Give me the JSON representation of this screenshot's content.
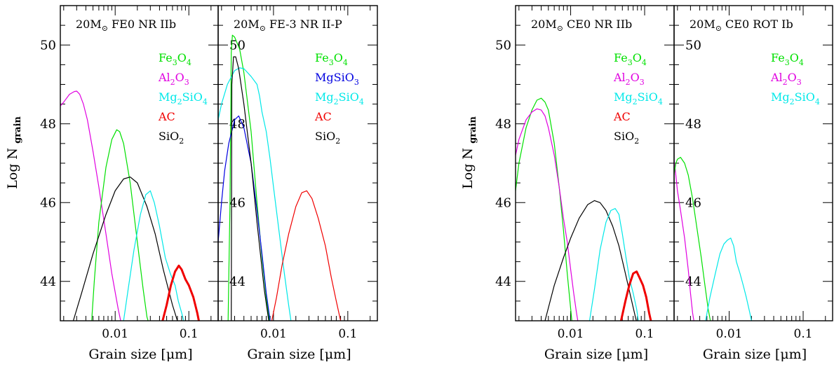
{
  "colors": {
    "Fe3O4": "#00e000",
    "Al2O3": "#e000e0",
    "Mg2SiO4": "#00e8e8",
    "MgSiO3": "#0000e0",
    "AC": "#f00000",
    "SiO2": "#000000"
  },
  "chart_data": [
    {
      "type": "line",
      "title": "20M⊙ FE0 NR IIb",
      "xlabel": "Grain size [μm]",
      "ylabel": "Log N_grain",
      "xscale": "log",
      "xlim": [
        0.0018,
        0.25
      ],
      "ylim": [
        43,
        51
      ],
      "xticks": [
        0.01,
        0.1
      ],
      "xtick_labels": [
        "0.01",
        "0.1"
      ],
      "yticks": [
        44,
        46,
        48,
        50
      ],
      "ytick_labels": [
        "44",
        "46",
        "48",
        "50"
      ],
      "legend": [
        {
          "label": "Fe3O4",
          "base": "Fe",
          "sub1": "3",
          "mid": "O",
          "sub2": "4",
          "color": "Fe3O4"
        },
        {
          "label": "Al2O3",
          "base": "Al",
          "sub1": "2",
          "mid": "O",
          "sub2": "3",
          "color": "Al2O3"
        },
        {
          "label": "Mg2SiO4",
          "base": "Mg",
          "sub1": "2",
          "mid": "SiO",
          "sub2": "4",
          "color": "Mg2SiO4"
        },
        {
          "label": "AC",
          "base": "AC",
          "sub1": "",
          "mid": "",
          "sub2": "",
          "color": "AC"
        },
        {
          "label": "SiO2",
          "base": "SiO",
          "sub1": "2",
          "mid": "",
          "sub2": "",
          "color": "SiO2"
        }
      ],
      "series": [
        {
          "species": "Al2O3",
          "color": "Al2O3",
          "x": [
            0.0018,
            0.002,
            0.0024,
            0.0028,
            0.003,
            0.0033,
            0.0037,
            0.0042,
            0.005,
            0.006,
            0.0075,
            0.009,
            0.011,
            0.0125
          ],
          "y": [
            48.45,
            48.55,
            48.75,
            48.82,
            48.83,
            48.75,
            48.5,
            48.1,
            47.3,
            46.4,
            45.2,
            44.2,
            43.3,
            42.8
          ]
        },
        {
          "species": "Fe3O4",
          "color": "Fe3O4",
          "x": [
            0.0048,
            0.0052,
            0.006,
            0.0075,
            0.009,
            0.0105,
            0.0115,
            0.013,
            0.016,
            0.02,
            0.024,
            0.027,
            0.03
          ],
          "y": [
            43.0,
            44.0,
            45.5,
            46.9,
            47.6,
            47.85,
            47.8,
            47.5,
            46.5,
            45.0,
            43.8,
            43.1,
            42.8
          ]
        },
        {
          "species": "SiO2",
          "color": "SiO2",
          "x": [
            0.0027,
            0.0035,
            0.005,
            0.0075,
            0.01,
            0.013,
            0.016,
            0.02,
            0.027,
            0.035,
            0.045,
            0.06,
            0.07
          ],
          "y": [
            43.0,
            43.7,
            44.7,
            45.7,
            46.3,
            46.6,
            46.65,
            46.5,
            45.9,
            45.2,
            44.3,
            43.4,
            43.0
          ]
        },
        {
          "species": "Mg2SiO4",
          "color": "Mg2SiO4",
          "x": [
            0.013,
            0.015,
            0.018,
            0.022,
            0.026,
            0.03,
            0.034,
            0.04,
            0.048,
            0.056,
            0.065,
            0.072,
            0.08,
            0.088
          ],
          "y": [
            43.0,
            43.8,
            44.8,
            45.7,
            46.2,
            46.3,
            46.0,
            45.4,
            44.6,
            44.2,
            43.9,
            43.5,
            43.2,
            42.9
          ]
        },
        {
          "species": "AC",
          "color": "AC",
          "x": [
            0.044,
            0.05,
            0.057,
            0.065,
            0.073,
            0.08,
            0.09,
            0.1,
            0.115,
            0.13,
            0.14
          ],
          "y": [
            43.0,
            43.4,
            43.9,
            44.25,
            44.4,
            44.3,
            44.05,
            43.9,
            43.6,
            43.2,
            42.9
          ]
        }
      ]
    },
    {
      "type": "line",
      "title": "20M⊙ FE-3 NR II-P",
      "xlabel": "Grain size [μm]",
      "ylabel": "",
      "xscale": "log",
      "xlim": [
        0.0018,
        0.25
      ],
      "ylim": [
        43,
        51
      ],
      "xticks": [
        0.01,
        0.1
      ],
      "xtick_labels": [
        "0.01",
        "0.1"
      ],
      "yticks": [
        44,
        46,
        48,
        50
      ],
      "ytick_labels": [
        "44",
        "46",
        "48",
        "50"
      ],
      "legend": [
        {
          "label": "Fe3O4",
          "base": "Fe",
          "sub1": "3",
          "mid": "O",
          "sub2": "4",
          "color": "Fe3O4"
        },
        {
          "label": "MgSiO3",
          "base": "MgSiO",
          "sub1": "3",
          "mid": "",
          "sub2": "",
          "color": "MgSiO3"
        },
        {
          "label": "Mg2SiO4",
          "base": "Mg",
          "sub1": "2",
          "mid": "SiO",
          "sub2": "4",
          "color": "Mg2SiO4"
        },
        {
          "label": "AC",
          "base": "AC",
          "sub1": "",
          "mid": "",
          "sub2": "",
          "color": "AC"
        },
        {
          "label": "SiO2",
          "base": "SiO",
          "sub1": "2",
          "mid": "",
          "sub2": "",
          "color": "SiO2"
        }
      ],
      "series": [
        {
          "species": "Fe3O4",
          "color": "Fe3O4",
          "x": [
            0.00245,
            0.0026,
            0.0027,
            0.0028,
            0.003,
            0.0035,
            0.004,
            0.005,
            0.006,
            0.007,
            0.008,
            0.0088,
            0.0093
          ],
          "y": [
            43.0,
            46.0,
            49.8,
            50.25,
            50.2,
            49.9,
            49.3,
            47.8,
            46.0,
            44.6,
            43.6,
            43.0,
            42.8
          ]
        },
        {
          "species": "Mg2SiO4",
          "color": "Mg2SiO4",
          "x": [
            0.0018,
            0.002,
            0.0024,
            0.003,
            0.0035,
            0.004,
            0.005,
            0.006,
            0.0065,
            0.007,
            0.008,
            0.009,
            0.01,
            0.012,
            0.014,
            0.016,
            0.0175
          ],
          "y": [
            48.1,
            48.5,
            49.0,
            49.35,
            49.42,
            49.4,
            49.2,
            49.0,
            48.7,
            48.3,
            47.8,
            47.1,
            46.4,
            45.2,
            44.2,
            43.4,
            42.9
          ]
        },
        {
          "species": "MgSiO3",
          "color": "MgSiO3",
          "x": [
            0.0018,
            0.002,
            0.0022,
            0.0025,
            0.003,
            0.0034,
            0.004,
            0.005,
            0.006,
            0.007,
            0.008,
            0.009
          ],
          "y": [
            45.0,
            46.0,
            46.8,
            47.5,
            48.1,
            48.2,
            47.9,
            47.0,
            45.8,
            44.7,
            43.7,
            43.0
          ]
        },
        {
          "species": "SiO2",
          "color": "SiO2",
          "x": [
            0.0027,
            0.00275,
            0.0029,
            0.0031,
            0.0034,
            0.004,
            0.005,
            0.006,
            0.0075,
            0.0088
          ],
          "y": [
            42.9,
            49.0,
            49.7,
            49.7,
            49.4,
            48.5,
            47.0,
            45.5,
            43.8,
            42.9
          ]
        },
        {
          "species": "AC",
          "color": "AC",
          "x": [
            0.0095,
            0.011,
            0.013,
            0.016,
            0.02,
            0.024,
            0.028,
            0.033,
            0.04,
            0.05,
            0.06,
            0.07,
            0.08,
            0.088
          ],
          "y": [
            43.0,
            43.6,
            44.4,
            45.2,
            45.9,
            46.25,
            46.3,
            46.1,
            45.6,
            44.9,
            44.1,
            43.5,
            43.0,
            42.8
          ]
        }
      ]
    },
    {
      "type": "line",
      "title": "20M⊙ CE0 NR  IIb",
      "xlabel": "Grain size [μm]",
      "ylabel": "Log N_grain",
      "xscale": "log",
      "xlim": [
        0.0018,
        0.25
      ],
      "ylim": [
        43,
        51
      ],
      "xticks": [
        0.01,
        0.1
      ],
      "xtick_labels": [
        "0.01",
        "0.1"
      ],
      "yticks": [
        44,
        46,
        48,
        50
      ],
      "ytick_labels": [
        "44",
        "46",
        "48",
        "50"
      ],
      "legend": [
        {
          "label": "Fe3O4",
          "base": "Fe",
          "sub1": "3",
          "mid": "O",
          "sub2": "4",
          "color": "Fe3O4"
        },
        {
          "label": "Al2O3",
          "base": "Al",
          "sub1": "2",
          "mid": "O",
          "sub2": "3",
          "color": "Al2O3"
        },
        {
          "label": "Mg2SiO4",
          "base": "Mg",
          "sub1": "2",
          "mid": "SiO",
          "sub2": "4",
          "color": "Mg2SiO4"
        },
        {
          "label": "AC",
          "base": "AC",
          "sub1": "",
          "mid": "",
          "sub2": "",
          "color": "AC"
        },
        {
          "label": "SiO2",
          "base": "SiO",
          "sub1": "2",
          "mid": "",
          "sub2": "",
          "color": "SiO2"
        }
      ],
      "series": [
        {
          "species": "Fe3O4",
          "color": "Fe3O4",
          "x": [
            0.0018,
            0.002,
            0.0025,
            0.003,
            0.0035,
            0.004,
            0.0045,
            0.005,
            0.006,
            0.007,
            0.008,
            0.009,
            0.01,
            0.0105
          ],
          "y": [
            46.3,
            47.0,
            47.9,
            48.35,
            48.6,
            48.65,
            48.55,
            48.35,
            47.5,
            46.4,
            45.3,
            44.2,
            43.3,
            42.9
          ]
        },
        {
          "species": "Al2O3",
          "color": "Al2O3",
          "x": [
            0.0018,
            0.002,
            0.0025,
            0.003,
            0.0035,
            0.004,
            0.0045,
            0.005,
            0.006,
            0.007,
            0.008,
            0.009,
            0.01,
            0.011,
            0.012,
            0.013
          ],
          "y": [
            47.2,
            47.6,
            48.1,
            48.3,
            48.38,
            48.35,
            48.2,
            47.9,
            47.2,
            46.4,
            45.6,
            45.0,
            44.3,
            43.7,
            43.2,
            42.8
          ]
        },
        {
          "species": "SiO2",
          "color": "SiO2",
          "x": [
            0.0045,
            0.006,
            0.008,
            0.01,
            0.013,
            0.017,
            0.021,
            0.025,
            0.03,
            0.037,
            0.045,
            0.055,
            0.065,
            0.075,
            0.082
          ],
          "y": [
            43.0,
            43.9,
            44.6,
            45.1,
            45.6,
            45.95,
            46.05,
            46.0,
            45.8,
            45.4,
            44.9,
            44.2,
            43.6,
            43.1,
            42.8
          ]
        },
        {
          "species": "Mg2SiO4",
          "color": "Mg2SiO4",
          "x": [
            0.018,
            0.021,
            0.025,
            0.03,
            0.035,
            0.04,
            0.045,
            0.05,
            0.056,
            0.062,
            0.07,
            0.078,
            0.084
          ],
          "y": [
            43.0,
            43.8,
            44.8,
            45.5,
            45.8,
            45.85,
            45.7,
            45.2,
            44.6,
            44.1,
            43.7,
            43.3,
            42.9
          ]
        },
        {
          "species": "AC",
          "color": "AC",
          "x": [
            0.048,
            0.055,
            0.062,
            0.07,
            0.078,
            0.085,
            0.095,
            0.105,
            0.115,
            0.125
          ],
          "y": [
            43.0,
            43.5,
            43.9,
            44.2,
            44.25,
            44.1,
            43.9,
            43.6,
            43.2,
            42.9
          ]
        }
      ]
    },
    {
      "type": "line",
      "title": "20M⊙ CE0 ROT Ib",
      "xlabel": "Grain size [μm]",
      "ylabel": "",
      "xscale": "log",
      "xlim": [
        0.0018,
        0.25
      ],
      "ylim": [
        43,
        51
      ],
      "xticks": [
        0.01,
        0.1
      ],
      "xtick_labels": [
        "0.01",
        "0.1"
      ],
      "yticks": [
        44,
        46,
        48,
        50
      ],
      "ytick_labels": [
        "44",
        "46",
        "48",
        "50"
      ],
      "legend": [
        {
          "label": "Fe3O4",
          "base": "Fe",
          "sub1": "3",
          "mid": "O",
          "sub2": "4",
          "color": "Fe3O4"
        },
        {
          "label": "Al2O3",
          "base": "Al",
          "sub1": "2",
          "mid": "O",
          "sub2": "3",
          "color": "Al2O3"
        },
        {
          "label": "Mg2SiO4",
          "base": "Mg",
          "sub1": "2",
          "mid": "SiO",
          "sub2": "4",
          "color": "Mg2SiO4"
        }
      ],
      "series": [
        {
          "species": "Al2O3",
          "color": "Al2O3",
          "x": [
            0.0018,
            0.0019,
            0.002,
            0.0022,
            0.0025,
            0.0028,
            0.003,
            0.0032,
            0.0034,
            0.0035
          ],
          "y": [
            47.1,
            46.7,
            46.3,
            45.8,
            45.1,
            44.3,
            43.7,
            43.2,
            42.9,
            42.8
          ]
        },
        {
          "species": "Fe3O4",
          "color": "Fe3O4",
          "x": [
            0.0018,
            0.0019,
            0.002,
            0.0022,
            0.0025,
            0.0028,
            0.0032,
            0.0037,
            0.0042,
            0.0047,
            0.0052,
            0.0057,
            0.006
          ],
          "y": [
            46.7,
            47.0,
            47.1,
            47.15,
            47.0,
            46.7,
            46.1,
            45.3,
            44.6,
            43.9,
            43.3,
            42.9,
            42.8
          ]
        },
        {
          "species": "Mg2SiO4",
          "color": "Mg2SiO4",
          "x": [
            0.0048,
            0.0055,
            0.0065,
            0.0075,
            0.0085,
            0.0095,
            0.0105,
            0.0115,
            0.0125,
            0.014,
            0.0155,
            0.017,
            0.019,
            0.0205
          ],
          "y": [
            43.0,
            43.6,
            44.2,
            44.7,
            44.95,
            45.05,
            45.1,
            44.9,
            44.5,
            44.2,
            43.9,
            43.6,
            43.2,
            42.9
          ]
        }
      ]
    }
  ]
}
